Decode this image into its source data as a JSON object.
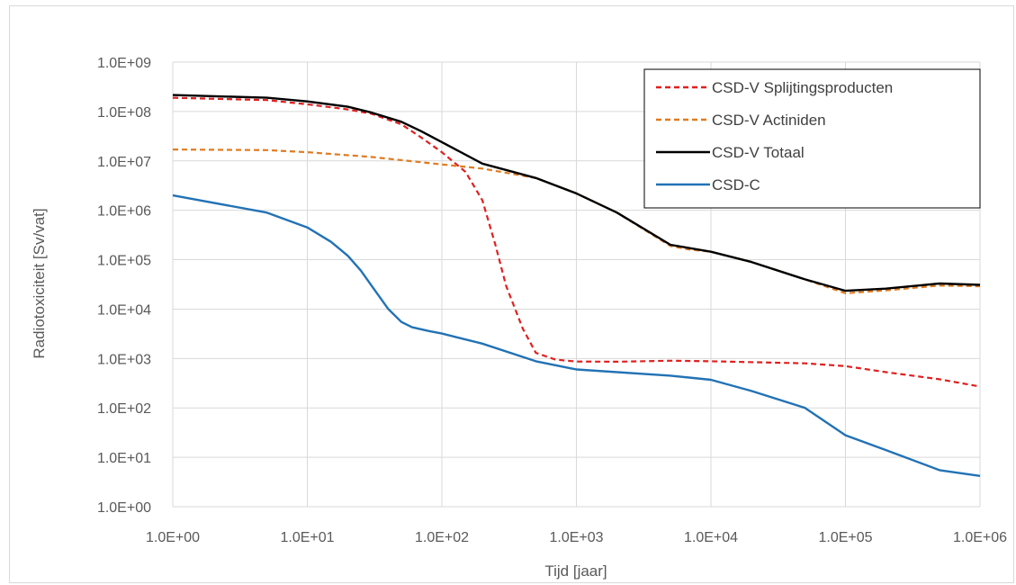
{
  "chart_data": {
    "type": "line",
    "title": "",
    "xlabel": "Tijd [jaar]",
    "ylabel": "Radiotoxiciteit [Sv/vat]",
    "x_scale": "log",
    "y_scale": "log",
    "xlim": [
      1,
      1000000
    ],
    "ylim": [
      1,
      1000000000
    ],
    "grid": true,
    "legend_position": "top-right",
    "x_tick_values": [
      1,
      10,
      100,
      1000,
      10000,
      100000,
      1000000
    ],
    "x_tick_labels": [
      "1.0E+00",
      "1.0E+01",
      "1.0E+02",
      "1.0E+03",
      "1.0E+04",
      "1.0E+05",
      "1.0E+06"
    ],
    "y_tick_values": [
      1,
      10,
      100,
      1000,
      10000,
      100000,
      1000000,
      10000000,
      100000000,
      1000000000
    ],
    "y_tick_labels": [
      "1.0E+00",
      "1.0E+01",
      "1.0E+02",
      "1.0E+03",
      "1.0E+04",
      "1.0E+05",
      "1.0E+06",
      "1.0E+07",
      "1.0E+08",
      "1.0E+09"
    ],
    "series": [
      {
        "name": "CSD-V Splijtingsproducten",
        "color": "#e02020",
        "dash": "dashed",
        "points": [
          [
            1,
            190000000
          ],
          [
            5,
            170000000
          ],
          [
            10,
            140000000
          ],
          [
            20,
            110000000
          ],
          [
            30,
            90000000
          ],
          [
            50,
            55000000
          ],
          [
            70,
            30000000
          ],
          [
            100,
            15000000
          ],
          [
            150,
            6000000
          ],
          [
            200,
            1600000
          ],
          [
            250,
            200000
          ],
          [
            300,
            30000
          ],
          [
            400,
            4000
          ],
          [
            500,
            1300
          ],
          [
            700,
            950
          ],
          [
            1000,
            870
          ],
          [
            2000,
            860
          ],
          [
            5000,
            900
          ],
          [
            10000,
            880
          ],
          [
            50000,
            800
          ],
          [
            100000,
            700
          ],
          [
            200000,
            530
          ],
          [
            500000,
            380
          ],
          [
            1000000,
            270
          ]
        ]
      },
      {
        "name": "CSD-V Actiniden",
        "color": "#e07b20",
        "dash": "dashed",
        "points": [
          [
            1,
            17000000
          ],
          [
            5,
            16500000
          ],
          [
            10,
            15000000
          ],
          [
            30,
            12000000
          ],
          [
            100,
            8500000
          ],
          [
            200,
            7000000
          ],
          [
            500,
            4500000
          ],
          [
            1000,
            2200000
          ],
          [
            2000,
            900000
          ],
          [
            5000,
            190000
          ],
          [
            7000,
            160000
          ],
          [
            10000,
            145000
          ],
          [
            20000,
            90000
          ],
          [
            50000,
            40000
          ],
          [
            100000,
            21000
          ],
          [
            200000,
            24000
          ],
          [
            500000,
            30000
          ],
          [
            1000000,
            29000
          ]
        ]
      },
      {
        "name": "CSD-V Totaal",
        "color": "#000000",
        "dash": "solid",
        "points": [
          [
            1,
            215000000
          ],
          [
            5,
            190000000
          ],
          [
            10,
            160000000
          ],
          [
            20,
            125000000
          ],
          [
            30,
            95000000
          ],
          [
            50,
            62000000
          ],
          [
            70,
            40000000
          ],
          [
            100,
            24000000
          ],
          [
            200,
            8800000
          ],
          [
            500,
            4500000
          ],
          [
            1000,
            2200000
          ],
          [
            2000,
            900000
          ],
          [
            5000,
            200000
          ],
          [
            10000,
            145000
          ],
          [
            20000,
            90000
          ],
          [
            50000,
            40000
          ],
          [
            100000,
            23500
          ],
          [
            200000,
            26000
          ],
          [
            500000,
            33000
          ],
          [
            1000000,
            31000
          ]
        ]
      },
      {
        "name": "CSD-C",
        "color": "#2272b5",
        "dash": "solid",
        "points": [
          [
            1,
            2000000
          ],
          [
            5,
            900000
          ],
          [
            10,
            450000
          ],
          [
            15,
            230000
          ],
          [
            20,
            120000
          ],
          [
            25,
            60000
          ],
          [
            30,
            30000
          ],
          [
            40,
            10000
          ],
          [
            50,
            5500
          ],
          [
            60,
            4300
          ],
          [
            80,
            3600
          ],
          [
            100,
            3200
          ],
          [
            200,
            2000
          ],
          [
            500,
            880
          ],
          [
            1000,
            600
          ],
          [
            5000,
            450
          ],
          [
            10000,
            370
          ],
          [
            20000,
            220
          ],
          [
            50000,
            100
          ],
          [
            100000,
            28
          ],
          [
            200000,
            14
          ],
          [
            500000,
            5.5
          ],
          [
            1000000,
            4.2
          ]
        ]
      }
    ]
  }
}
